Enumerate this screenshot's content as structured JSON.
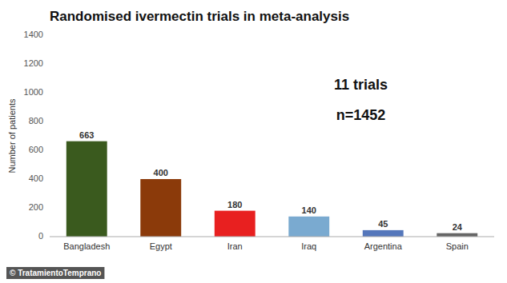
{
  "chart_data": {
    "type": "bar",
    "title": "Randomised ivermectin trials in meta-analysis",
    "categories": [
      "Bangladesh",
      "Egypt",
      "Iran",
      "Iraq",
      "Argentina",
      "Spain"
    ],
    "values": [
      663,
      400,
      180,
      140,
      45,
      24
    ],
    "colors": [
      "#3a5a1e",
      "#8b3a0a",
      "#e82020",
      "#7aaad0",
      "#5577bb",
      "#666666"
    ],
    "y_label": "Number of patients",
    "ylim": [
      0,
      1400
    ],
    "yticks": [
      0,
      200,
      400,
      600,
      800,
      1000,
      1200,
      1400
    ],
    "annotations": [
      "11 trials",
      "n=1452"
    ],
    "footer": "© TratamientoTemprano",
    "data_labels": true,
    "grid": false
  }
}
